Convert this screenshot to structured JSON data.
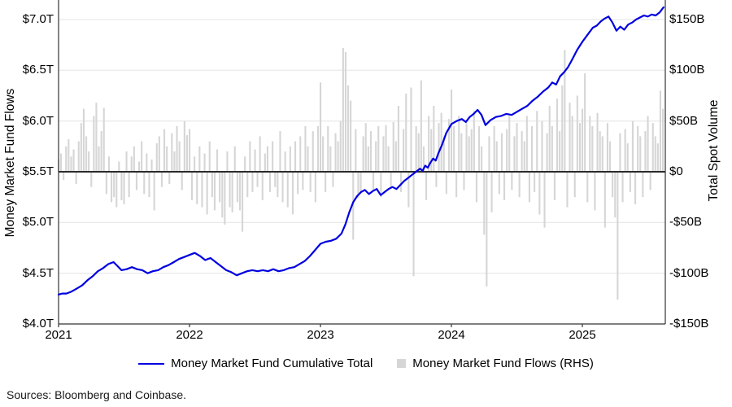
{
  "source_note": "Sources: Bloomberg and Coinbase.",
  "legend": [
    {
      "type": "line",
      "label": "Money Market Fund Cumulative Total"
    },
    {
      "type": "square",
      "label": "Money Market Fund Flows (RHS)"
    }
  ],
  "chart_data": {
    "type": "line+bar dual-axis combo",
    "title": "",
    "grid": "horizontal gridlines on",
    "legend_position": "bottom center",
    "style": {
      "line_color": "#0000e0",
      "bar_color": "#d6d6d6",
      "legend_square_color": "#d6d6d6",
      "grid_color": "#e4e4e4",
      "zero_line_color": "#2b2b2b",
      "axis_color": "#333333",
      "background": "#ffffff"
    },
    "left_axis": {
      "label": "Money Market Fund Flows",
      "unit": "trillions USD",
      "min": 4.0,
      "max": 7.0,
      "ticks": [
        {
          "label": "$7.0T",
          "value": 7.0
        },
        {
          "label": "$6.5T",
          "value": 6.5
        },
        {
          "label": "$6.0T",
          "value": 6.0
        },
        {
          "label": "$5.5T",
          "value": 5.5
        },
        {
          "label": "$5.0T",
          "value": 5.0
        },
        {
          "label": "$4.5T",
          "value": 4.5
        },
        {
          "label": "$4.0T",
          "value": 4.0
        }
      ]
    },
    "right_axis": {
      "label": "Total Spot Volume",
      "unit": "billions USD",
      "min": -150,
      "max": 150,
      "ticks": [
        {
          "label": "$150B",
          "value": 150
        },
        {
          "label": "$100B",
          "value": 100
        },
        {
          "label": "$50B",
          "value": 50
        },
        {
          "label": "$0",
          "value": 0
        },
        {
          "label": "-$50B",
          "value": -50
        },
        {
          "label": "-$100B",
          "value": -100
        },
        {
          "label": "-$150B",
          "value": -150
        }
      ]
    },
    "x_axis": {
      "min": 2021.0,
      "max": 2025.63,
      "ticks": [
        {
          "label": "2021",
          "value": 2021
        },
        {
          "label": "2022",
          "value": 2022
        },
        {
          "label": "2023",
          "value": 2023
        },
        {
          "label": "2024",
          "value": 2024
        },
        {
          "label": "2025",
          "value": 2025
        }
      ]
    },
    "line_series": {
      "name": "Money Market Fund Cumulative Total",
      "axis": "left",
      "color": "#0000e0",
      "points": [
        [
          2021.0,
          4.29
        ],
        [
          2021.03,
          4.3
        ],
        [
          2021.06,
          4.3
        ],
        [
          2021.1,
          4.32
        ],
        [
          2021.14,
          4.35
        ],
        [
          2021.18,
          4.38
        ],
        [
          2021.22,
          4.43
        ],
        [
          2021.26,
          4.47
        ],
        [
          2021.3,
          4.52
        ],
        [
          2021.34,
          4.55
        ],
        [
          2021.38,
          4.59
        ],
        [
          2021.42,
          4.61
        ],
        [
          2021.45,
          4.57
        ],
        [
          2021.48,
          4.53
        ],
        [
          2021.52,
          4.54
        ],
        [
          2021.56,
          4.56
        ],
        [
          2021.6,
          4.54
        ],
        [
          2021.64,
          4.53
        ],
        [
          2021.68,
          4.5
        ],
        [
          2021.72,
          4.52
        ],
        [
          2021.76,
          4.53
        ],
        [
          2021.8,
          4.56
        ],
        [
          2021.84,
          4.58
        ],
        [
          2021.88,
          4.61
        ],
        [
          2021.92,
          4.64
        ],
        [
          2021.96,
          4.66
        ],
        [
          2022.0,
          4.68
        ],
        [
          2022.04,
          4.7
        ],
        [
          2022.08,
          4.67
        ],
        [
          2022.12,
          4.63
        ],
        [
          2022.16,
          4.65
        ],
        [
          2022.2,
          4.61
        ],
        [
          2022.24,
          4.57
        ],
        [
          2022.28,
          4.53
        ],
        [
          2022.32,
          4.51
        ],
        [
          2022.36,
          4.48
        ],
        [
          2022.4,
          4.5
        ],
        [
          2022.44,
          4.52
        ],
        [
          2022.48,
          4.53
        ],
        [
          2022.52,
          4.52
        ],
        [
          2022.56,
          4.53
        ],
        [
          2022.6,
          4.52
        ],
        [
          2022.64,
          4.54
        ],
        [
          2022.68,
          4.52
        ],
        [
          2022.72,
          4.53
        ],
        [
          2022.76,
          4.55
        ],
        [
          2022.8,
          4.56
        ],
        [
          2022.84,
          4.59
        ],
        [
          2022.88,
          4.62
        ],
        [
          2022.92,
          4.67
        ],
        [
          2022.96,
          4.73
        ],
        [
          2023.0,
          4.79
        ],
        [
          2023.04,
          4.81
        ],
        [
          2023.08,
          4.82
        ],
        [
          2023.12,
          4.84
        ],
        [
          2023.16,
          4.89
        ],
        [
          2023.19,
          4.98
        ],
        [
          2023.22,
          5.1
        ],
        [
          2023.25,
          5.2
        ],
        [
          2023.28,
          5.26
        ],
        [
          2023.31,
          5.3
        ],
        [
          2023.34,
          5.32
        ],
        [
          2023.37,
          5.28
        ],
        [
          2023.4,
          5.31
        ],
        [
          2023.43,
          5.33
        ],
        [
          2023.46,
          5.27
        ],
        [
          2023.49,
          5.3
        ],
        [
          2023.52,
          5.33
        ],
        [
          2023.55,
          5.35
        ],
        [
          2023.58,
          5.33
        ],
        [
          2023.61,
          5.37
        ],
        [
          2023.64,
          5.41
        ],
        [
          2023.67,
          5.44
        ],
        [
          2023.7,
          5.47
        ],
        [
          2023.73,
          5.5
        ],
        [
          2023.76,
          5.53
        ],
        [
          2023.78,
          5.51
        ],
        [
          2023.8,
          5.56
        ],
        [
          2023.82,
          5.54
        ],
        [
          2023.84,
          5.59
        ],
        [
          2023.86,
          5.63
        ],
        [
          2023.88,
          5.61
        ],
        [
          2023.9,
          5.68
        ],
        [
          2023.93,
          5.77
        ],
        [
          2023.96,
          5.88
        ],
        [
          2024.0,
          5.97
        ],
        [
          2024.04,
          6.0
        ],
        [
          2024.08,
          6.02
        ],
        [
          2024.11,
          5.99
        ],
        [
          2024.14,
          6.04
        ],
        [
          2024.17,
          6.07
        ],
        [
          2024.2,
          6.11
        ],
        [
          2024.23,
          6.06
        ],
        [
          2024.26,
          5.96
        ],
        [
          2024.3,
          6.01
        ],
        [
          2024.34,
          6.04
        ],
        [
          2024.38,
          6.05
        ],
        [
          2024.42,
          6.07
        ],
        [
          2024.46,
          6.06
        ],
        [
          2024.5,
          6.09
        ],
        [
          2024.54,
          6.12
        ],
        [
          2024.58,
          6.15
        ],
        [
          2024.62,
          6.2
        ],
        [
          2024.66,
          6.24
        ],
        [
          2024.7,
          6.29
        ],
        [
          2024.74,
          6.33
        ],
        [
          2024.77,
          6.38
        ],
        [
          2024.8,
          6.36
        ],
        [
          2024.83,
          6.44
        ],
        [
          2024.86,
          6.48
        ],
        [
          2024.89,
          6.53
        ],
        [
          2024.92,
          6.6
        ],
        [
          2024.96,
          6.7
        ],
        [
          2025.0,
          6.78
        ],
        [
          2025.04,
          6.85
        ],
        [
          2025.08,
          6.92
        ],
        [
          2025.11,
          6.94
        ],
        [
          2025.14,
          6.98
        ],
        [
          2025.17,
          7.01
        ],
        [
          2025.2,
          7.03
        ],
        [
          2025.23,
          6.97
        ],
        [
          2025.26,
          6.89
        ],
        [
          2025.29,
          6.93
        ],
        [
          2025.32,
          6.9
        ],
        [
          2025.35,
          6.95
        ],
        [
          2025.38,
          6.97
        ],
        [
          2025.41,
          7.0
        ],
        [
          2025.44,
          7.02
        ],
        [
          2025.47,
          7.04
        ],
        [
          2025.5,
          7.03
        ],
        [
          2025.53,
          7.05
        ],
        [
          2025.56,
          7.04
        ],
        [
          2025.59,
          7.07
        ],
        [
          2025.62,
          7.12
        ]
      ]
    },
    "bar_series": {
      "name": "Money Market Fund Flows (RHS)",
      "axis": "right",
      "color": "#d6d6d6",
      "frequency": "weekly",
      "start_year": 2021.0,
      "step_years": 0.019231,
      "values": [
        12,
        18,
        -8,
        25,
        32,
        15,
        22,
        -12,
        30,
        48,
        62,
        35,
        20,
        -15,
        55,
        68,
        25,
        40,
        63,
        -22,
        15,
        -30,
        -25,
        -35,
        10,
        -28,
        -32,
        20,
        -25,
        15,
        25,
        -18,
        10,
        30,
        -22,
        18,
        -25,
        12,
        -38,
        28,
        35,
        -15,
        42,
        25,
        -12,
        38,
        20,
        45,
        30,
        -18,
        50,
        36,
        42,
        -28,
        15,
        -32,
        25,
        -35,
        18,
        -42,
        30,
        -25,
        -38,
        22,
        -30,
        -45,
        -52,
        20,
        -35,
        -40,
        25,
        -30,
        -38,
        -59,
        15,
        -25,
        30,
        -20,
        22,
        -15,
        35,
        -28,
        18,
        25,
        -20,
        30,
        -15,
        -25,
        40,
        -30,
        20,
        -35,
        25,
        -42,
        30,
        -22,
        35,
        -18,
        45,
        25,
        -20,
        40,
        -30,
        45,
        88,
        35,
        -20,
        45,
        25,
        -15,
        38,
        30,
        50,
        122,
        118,
        85,
        70,
        -67,
        42,
        -26,
        -22,
        35,
        48,
        25,
        40,
        -18,
        30,
        45,
        -25,
        35,
        46,
        25,
        -15,
        49,
        30,
        65,
        -20,
        42,
        77,
        -35,
        83,
        -103,
        45,
        38,
        90,
        25,
        -28,
        55,
        42,
        65,
        -15,
        48,
        58,
        35,
        -22,
        52,
        81,
        45,
        -25,
        55,
        38,
        -18,
        48,
        35,
        42,
        60,
        -30,
        45,
        25,
        -62,
        -113,
        35,
        -40,
        45,
        30,
        -22,
        38,
        -28,
        42,
        55,
        -18,
        35,
        48,
        -25,
        40,
        30,
        55,
        -30,
        45,
        -20,
        60,
        -42,
        50,
        -55,
        38,
        65,
        45,
        -28,
        72,
        40,
        85,
        120,
        -35,
        68,
        55,
        -25,
        75,
        48,
        62,
        97,
        -30,
        55,
        45,
        -38,
        58,
        40,
        35,
        -55,
        48,
        30,
        -25,
        -45,
        -126,
        38,
        -30,
        42,
        28,
        -20,
        50,
        -32,
        45,
        35,
        -25,
        40,
        55,
        -18,
        48,
        35,
        28,
        80,
        62
      ]
    }
  }
}
